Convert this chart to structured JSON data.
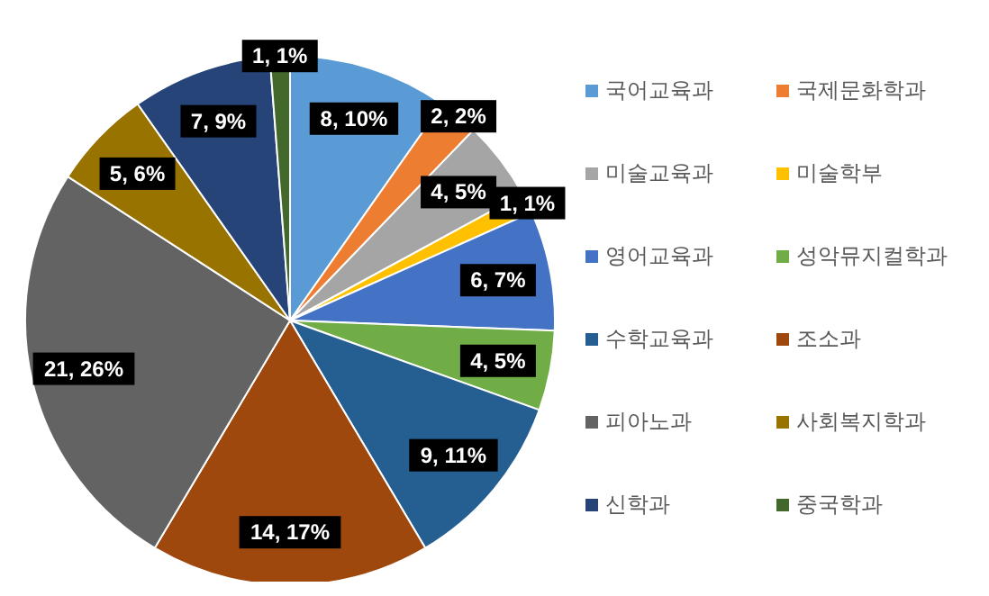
{
  "chart_data": {
    "type": "pie",
    "categories": [
      "국어교육과",
      "국제문화학과",
      "미술교육과",
      "미술학부",
      "영어교육과",
      "성악뮤지컬학과",
      "수학교육과",
      "조소과",
      "피아노과",
      "사회복지학과",
      "신학과",
      "중국학과"
    ],
    "values": [
      8,
      2,
      4,
      1,
      6,
      4,
      9,
      14,
      21,
      5,
      7,
      1
    ],
    "value_labels": [
      "8, 10%",
      "2, 2%",
      "4, 5%",
      "1, 1%",
      "6, 7%",
      "4, 5%",
      "9, 11%",
      "14, 17%",
      "21, 26%",
      "5, 6%",
      "7, 9%",
      "1, 1%"
    ],
    "colors": [
      "#5b9bd5",
      "#ed7d31",
      "#a5a5a5",
      "#ffc000",
      "#4472c4",
      "#70ad47",
      "#255e91",
      "#9e480e",
      "#636363",
      "#997300",
      "#264478",
      "#43682b"
    ],
    "legend": "right"
  }
}
